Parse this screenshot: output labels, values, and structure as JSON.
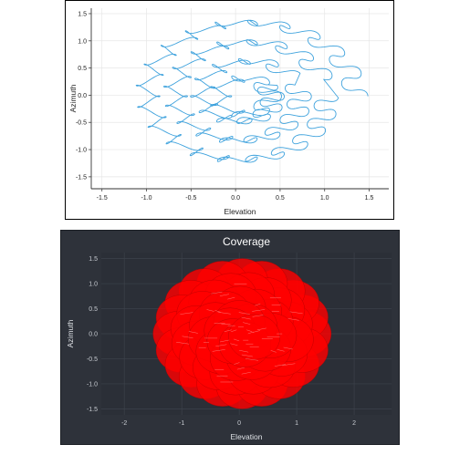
{
  "chart_data": [
    {
      "type": "line",
      "title": "",
      "xlabel": "Elevation",
      "ylabel": "Azimuth",
      "xlim": [
        -1.62,
        1.72
      ],
      "ylim": [
        -1.72,
        1.6
      ],
      "xticks": [
        -1.5,
        -1.0,
        -0.5,
        0.0,
        0.5,
        1.0,
        1.5
      ],
      "yticks": [
        -1.5,
        -1.0,
        -0.5,
        0.0,
        0.5,
        1.0,
        1.5
      ],
      "xtick_labels": [
        "-1.5",
        "-1.0",
        "-0.5",
        "0.0",
        "0.5",
        "1.0",
        "1.5"
      ],
      "ytick_labels": [
        "-1.5",
        "-1.0",
        "-0.5",
        "0.0",
        "0.5",
        "1.0",
        "1.5"
      ],
      "grid": true,
      "line_color": "#3ea2dd",
      "description_path": "spiral scan path with small petal loops",
      "series": [
        {
          "name": "",
          "spiral_rings": [
            {
              "rx": 1.25,
              "ry": 1.45,
              "loops": 20
            },
            {
              "rx": 0.92,
              "ry": 1.07,
              "loops": 16
            },
            {
              "rx": 0.6,
              "ry": 0.7,
              "loops": 11
            },
            {
              "rx": 0.28,
              "ry": 0.33,
              "loops": 6
            }
          ],
          "center": [
            0.1,
            -0.02
          ]
        }
      ]
    },
    {
      "type": "scatter",
      "title": "Coverage",
      "xlabel": "Elevation",
      "ylabel": "Azimuth",
      "xlim": [
        -2.4,
        2.65
      ],
      "ylim": [
        -1.62,
        1.62
      ],
      "xticks": [
        -2,
        -1,
        0,
        1,
        2
      ],
      "yticks": [
        -1.5,
        -1.0,
        -0.5,
        0.0,
        0.5,
        1.0,
        1.5
      ],
      "xtick_labels": [
        "-2",
        "-1",
        "0",
        "1",
        "2"
      ],
      "ytick_labels": [
        "-1.5",
        "-1.0",
        "-0.5",
        "0.0",
        "0.5",
        "1.0",
        "1.5"
      ],
      "grid": true,
      "background": "#2e323a",
      "plot_background": "#2b2f37",
      "fill_color": "#ff0000",
      "series": [
        {
          "name": "",
          "circle_radius": 0.45,
          "spiral_rings": [
            {
              "rx": 1.1,
              "ry": 1.05,
              "count": 20
            },
            {
              "rx": 0.8,
              "ry": 0.78,
              "count": 16
            },
            {
              "rx": 0.5,
              "ry": 0.5,
              "count": 11
            },
            {
              "rx": 0.22,
              "ry": 0.22,
              "count": 6
            }
          ],
          "center": [
            0.05,
            0.0
          ]
        }
      ]
    }
  ]
}
